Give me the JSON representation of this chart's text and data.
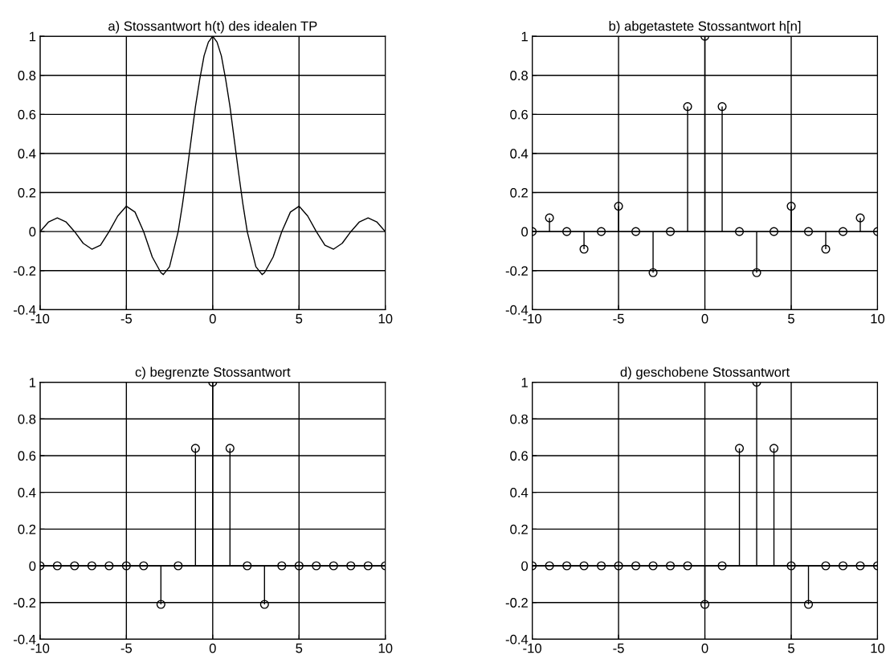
{
  "chart_data": [
    {
      "type": "line",
      "title": "a) Stossantwort h(t) des idealen TP",
      "grid": true,
      "marker": "none",
      "line_style": "solid",
      "xlim": [
        -10,
        10
      ],
      "ylim": [
        -0.4,
        1
      ],
      "xticks": [
        -10,
        -5,
        0,
        5,
        10
      ],
      "yticks": [
        -0.4,
        -0.2,
        0,
        0.2,
        0.4,
        0.6,
        0.8,
        1
      ],
      "series": [
        {
          "color": "#000000",
          "x": [
            -10,
            -9.5,
            -9,
            -8.5,
            -8,
            -7.5,
            -7,
            -6.5,
            -6,
            -5.5,
            -5,
            -4.5,
            -4,
            -3.5,
            -3,
            -2.86,
            -2.5,
            -2,
            -1.75,
            -1.5,
            -1.25,
            -1,
            -0.75,
            -0.5,
            -0.25,
            0,
            0.25,
            0.5,
            0.75,
            1,
            1.25,
            1.5,
            1.75,
            2,
            2.5,
            2.86,
            3,
            3.5,
            4,
            4.5,
            5,
            5.5,
            6,
            6.5,
            7,
            7.5,
            8,
            8.5,
            9,
            9.5,
            10
          ],
          "values": [
            0,
            0.05,
            0.07,
            0.05,
            0,
            -0.06,
            -0.09,
            -0.07,
            0,
            0.08,
            0.13,
            0.1,
            0,
            -0.13,
            -0.21,
            -0.22,
            -0.18,
            0,
            0.14,
            0.3,
            0.47,
            0.64,
            0.78,
            0.9,
            0.97,
            1,
            0.97,
            0.9,
            0.78,
            0.64,
            0.47,
            0.3,
            0.14,
            0,
            -0.18,
            -0.22,
            -0.21,
            -0.13,
            0,
            0.1,
            0.13,
            0.08,
            0,
            -0.07,
            -0.09,
            -0.06,
            0,
            0.05,
            0.07,
            0.05,
            0
          ]
        }
      ]
    },
    {
      "type": "lollipop",
      "title": "b) abgetastete Stossantwort h[n]",
      "grid": true,
      "marker": "circle",
      "xlim": [
        -10,
        10
      ],
      "ylim": [
        -0.4,
        1
      ],
      "xticks": [
        -10,
        -5,
        0,
        5,
        10
      ],
      "yticks": [
        -0.4,
        -0.2,
        0,
        0.2,
        0.4,
        0.6,
        0.8,
        1
      ],
      "series": [
        {
          "color": "#000000",
          "x": [
            -10,
            -9,
            -8,
            -7,
            -6,
            -5,
            -4,
            -3,
            -2,
            -1,
            0,
            1,
            2,
            3,
            4,
            5,
            6,
            7,
            8,
            9,
            10
          ],
          "values": [
            0,
            0.07,
            0,
            -0.09,
            0,
            0.13,
            0,
            -0.21,
            0,
            0.64,
            1,
            0.64,
            0,
            -0.21,
            0,
            0.13,
            0,
            -0.09,
            0,
            0.07,
            0
          ]
        }
      ]
    },
    {
      "type": "lollipop",
      "title": "c) begrenzte Stossantwort",
      "grid": true,
      "marker": "circle",
      "xlim": [
        -10,
        10
      ],
      "ylim": [
        -0.4,
        1
      ],
      "xticks": [
        -10,
        -5,
        0,
        5,
        10
      ],
      "yticks": [
        -0.4,
        -0.2,
        0,
        0.2,
        0.4,
        0.6,
        0.8,
        1
      ],
      "series": [
        {
          "color": "#000000",
          "x": [
            -10,
            -9,
            -8,
            -7,
            -6,
            -5,
            -4,
            -3,
            -2,
            -1,
            0,
            1,
            2,
            3,
            4,
            5,
            6,
            7,
            8,
            9,
            10
          ],
          "values": [
            0,
            0,
            0,
            0,
            0,
            0,
            0,
            -0.21,
            0,
            0.64,
            1,
            0.64,
            0,
            -0.21,
            0,
            0,
            0,
            0,
            0,
            0,
            0
          ]
        }
      ]
    },
    {
      "type": "lollipop",
      "title": "d) geschobene Stossantwort",
      "grid": true,
      "marker": "circle",
      "xlim": [
        -10,
        10
      ],
      "ylim": [
        -0.4,
        1
      ],
      "xticks": [
        -10,
        -5,
        0,
        5,
        10
      ],
      "yticks": [
        -0.4,
        -0.2,
        0,
        0.2,
        0.4,
        0.6,
        0.8,
        1
      ],
      "series": [
        {
          "color": "#000000",
          "x": [
            -10,
            -9,
            -8,
            -7,
            -6,
            -5,
            -4,
            -3,
            -2,
            -1,
            0,
            1,
            2,
            3,
            4,
            5,
            6,
            7,
            8,
            9,
            10
          ],
          "values": [
            0,
            0,
            0,
            0,
            0,
            0,
            0,
            0,
            0,
            0,
            -0.21,
            0,
            0.64,
            1,
            0.64,
            0,
            -0.21,
            0,
            0,
            0,
            0
          ]
        }
      ]
    }
  ]
}
